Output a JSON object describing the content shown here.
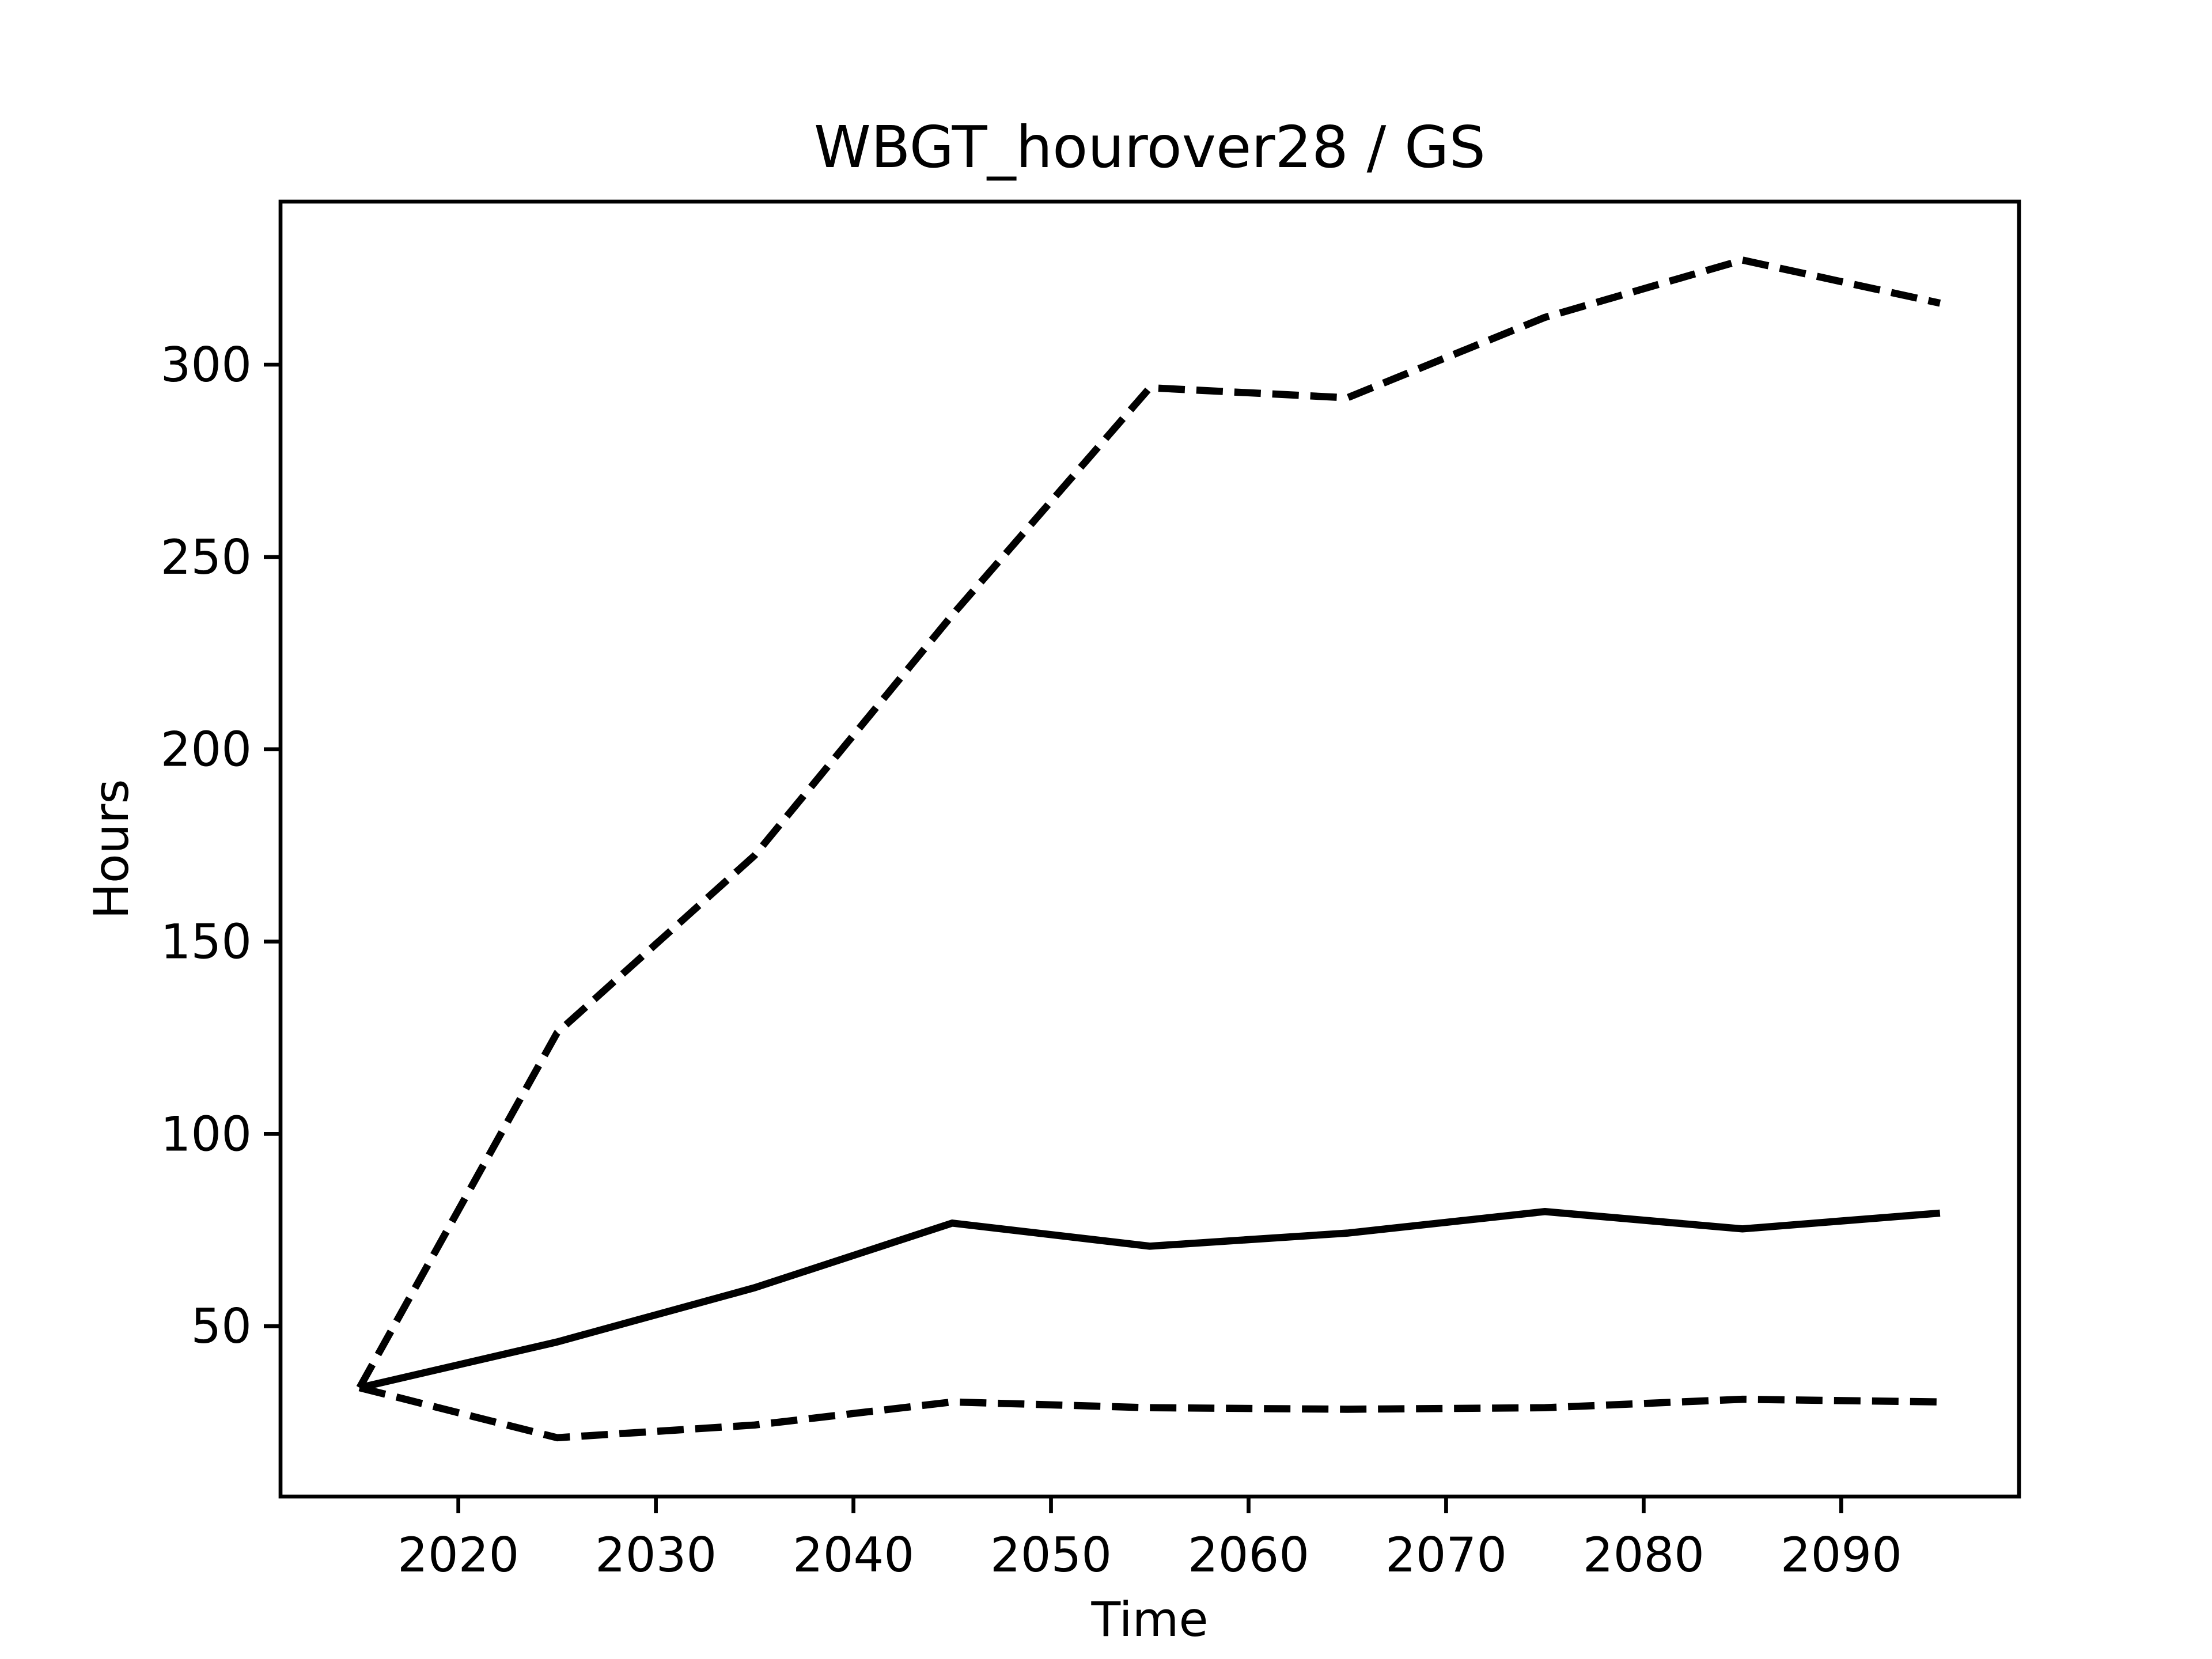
{
  "chart_data": {
    "type": "line",
    "title": "WBGT_hourover28 / GS",
    "xlabel": "Time",
    "ylabel": "Hours",
    "x": [
      2015,
      2025,
      2035,
      2045,
      2055,
      2065,
      2075,
      2085,
      2095
    ],
    "series": [
      {
        "color": "#000000",
        "style": "dashed",
        "values": [
          34,
          126.3,
          172.4,
          234.9,
          294,
          291.4,
          312.3,
          327.2,
          316
        ]
      },
      {
        "color": "#000000",
        "style": "solid",
        "values": [
          34,
          45.9,
          60,
          76.8,
          70.8,
          74.2,
          79.8,
          75.3,
          79.4
        ]
      },
      {
        "color": "#000000",
        "style": "dashed",
        "values": [
          34,
          21,
          24.3,
          30.3,
          28.8,
          28.4,
          28.8,
          31,
          30.3
        ]
      }
    ],
    "xlim": [
      2011,
      2099
    ],
    "xticks": [
      2020,
      2030,
      2040,
      2050,
      2060,
      2070,
      2080,
      2090
    ],
    "ylim": [
      5.7,
      342.4
    ],
    "yticks": [
      50,
      100,
      150,
      200,
      250,
      300
    ],
    "grid": false
  }
}
